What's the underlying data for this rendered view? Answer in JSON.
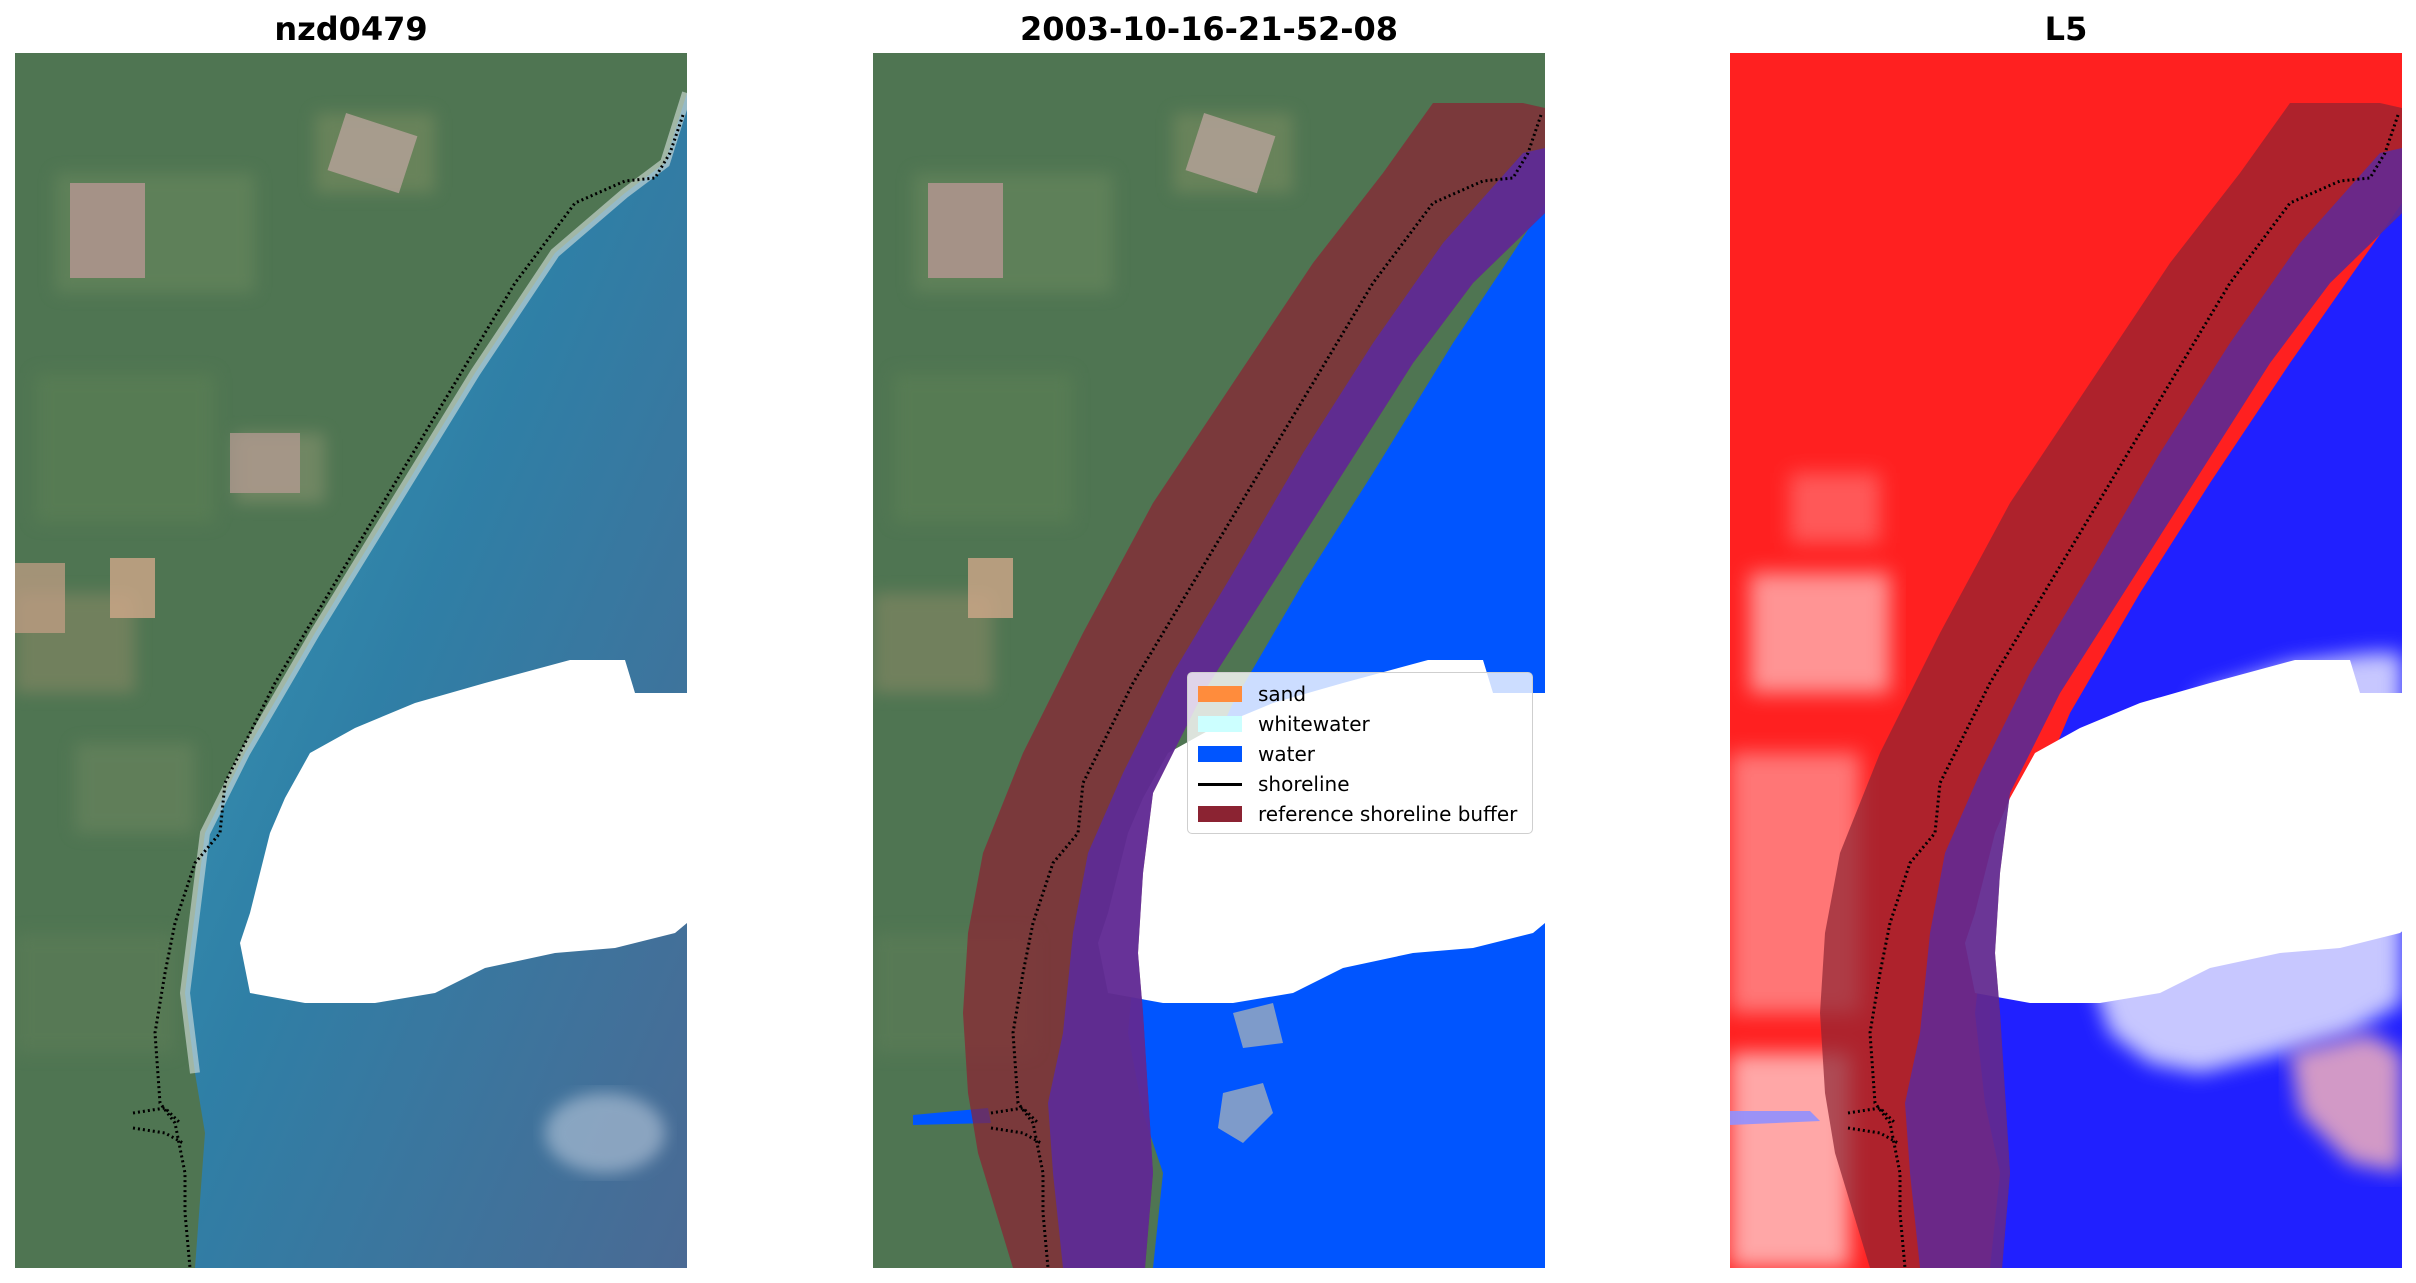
{
  "panels": [
    {
      "title": "nzd0479"
    },
    {
      "title": "2003-10-16-21-52-08"
    },
    {
      "title": "L5"
    }
  ],
  "legend": {
    "items": [
      {
        "label": "sand",
        "color": "#ff8c3c",
        "kind": "patch"
      },
      {
        "label": "whitewater",
        "color": "#ccffff",
        "kind": "patch"
      },
      {
        "label": "water",
        "color": "#0055ff",
        "kind": "patch"
      },
      {
        "label": "shoreline",
        "color": "#000000",
        "kind": "line"
      },
      {
        "label": "reference shoreline buffer",
        "color": "#8b2332",
        "kind": "patch"
      }
    ]
  },
  "colors": {
    "land": "#4e7452",
    "lagoon": "#3f8aa6",
    "deep_water": "#4a6d96",
    "cloud": "#ffffff",
    "buffer": "#8b2332",
    "classified_water": "#0055ff",
    "index_positive": "#ff1e1e",
    "index_negative": "#1a1aff"
  }
}
